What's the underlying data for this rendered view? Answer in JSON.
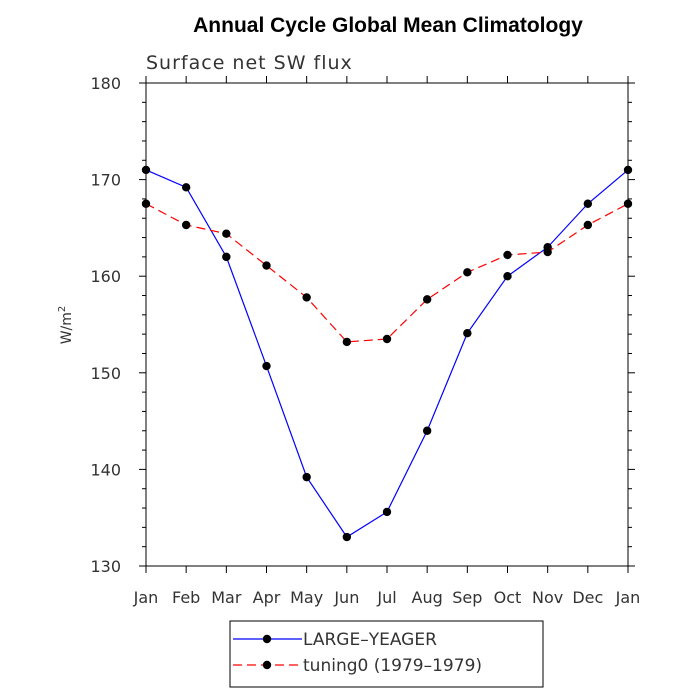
{
  "chart_data": {
    "type": "line",
    "title": "Annual Cycle Global Mean Climatology",
    "subtitle": "Surface net SW flux",
    "xlabel": "",
    "ylabel": "W/m",
    "ylabel_superscript": "2",
    "categories": [
      "Jan",
      "Feb",
      "Mar",
      "Apr",
      "May",
      "Jun",
      "Jul",
      "Aug",
      "Sep",
      "Oct",
      "Nov",
      "Dec",
      "Jan"
    ],
    "ylim": [
      130,
      180
    ],
    "yticks": [
      130,
      140,
      150,
      160,
      170,
      180
    ],
    "grid": false,
    "legend_position": "bottom",
    "series": [
      {
        "name": "LARGE–YEAGER",
        "color": "#0000ff",
        "line_style": "solid",
        "marker": "circle",
        "values": [
          171.0,
          169.2,
          162.0,
          150.7,
          139.2,
          133.0,
          135.6,
          144.0,
          154.1,
          160.0,
          163.0,
          167.5,
          171.0
        ]
      },
      {
        "name": "tuning0 (1979–1979)",
        "color": "#ff0000",
        "line_style": "dashed",
        "marker": "circle",
        "values": [
          167.5,
          165.3,
          164.4,
          161.1,
          157.8,
          153.2,
          153.5,
          157.6,
          160.4,
          162.2,
          162.5,
          165.3,
          167.5
        ]
      }
    ]
  }
}
